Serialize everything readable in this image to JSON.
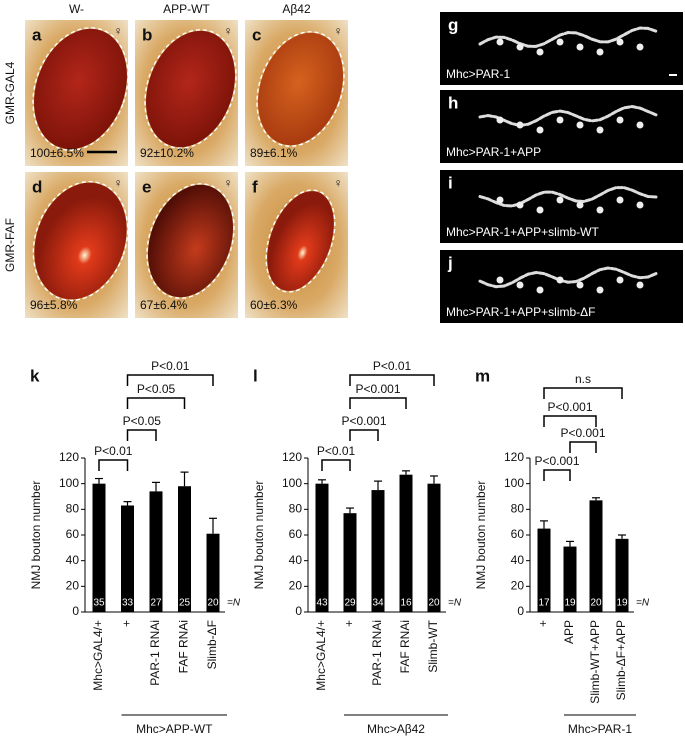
{
  "eye_panels": {
    "column_headers": [
      "W-",
      "APP-WT",
      "Aβ42"
    ],
    "row_labels": [
      "GMR-GAL4",
      "GMR-FAF"
    ],
    "panels": [
      {
        "letter": "a",
        "value_text": "100±6.5%",
        "symbol": "♀"
      },
      {
        "letter": "b",
        "value_text": "92±10.2%",
        "symbol": "♀"
      },
      {
        "letter": "c",
        "value_text": "89±6.1%",
        "symbol": "♀"
      },
      {
        "letter": "d",
        "value_text": "96±5.8%",
        "symbol": "♀"
      },
      {
        "letter": "e",
        "value_text": "67±6.4%",
        "symbol": "♀"
      },
      {
        "letter": "f",
        "value_text": "60±6.3%",
        "symbol": "♀"
      }
    ]
  },
  "nmj_panels": [
    {
      "letter": "g",
      "label": "Mhc>PAR-1"
    },
    {
      "letter": "h",
      "label": "Mhc>PAR-1+APP"
    },
    {
      "letter": "i",
      "label": "Mhc>PAR-1+APP+slimb-WT"
    },
    {
      "letter": "j",
      "label": "Mhc>PAR-1+APP+slimb-ΔF"
    }
  ],
  "chart_data": [
    {
      "type": "bar",
      "letter": "k",
      "ylabel": "NMJ bouton number",
      "color": "#000000",
      "categories": [
        "Mhc>GAL4/+",
        "+",
        "PAR-1 RNAi",
        "FAF RNAi",
        "Slimb-ΔF"
      ],
      "values": [
        100,
        83,
        94,
        98,
        61
      ],
      "errors": [
        4,
        3,
        7,
        11,
        12
      ],
      "n_labels": [
        "35",
        "33",
        "27",
        "25",
        "20"
      ],
      "n_suffix": "=N",
      "group_label": "Mhc>APP-WT",
      "ylim": [
        0,
        120
      ],
      "yticks": [
        0,
        20,
        40,
        60,
        80,
        100,
        120
      ],
      "comparisons": [
        {
          "label": "P<0.01",
          "pair": [
            "Mhc>GAL4/+",
            "+"
          ]
        },
        {
          "label": "P<0.05",
          "pair": [
            "+",
            "PAR-1 RNAi"
          ]
        },
        {
          "label": "P<0.05",
          "pair": [
            "+",
            "FAF RNAi"
          ]
        },
        {
          "label": "P<0.01",
          "pair": [
            "+",
            "Slimb-ΔF"
          ]
        }
      ]
    },
    {
      "type": "bar",
      "letter": "l",
      "ylabel": "NMJ bouton number",
      "color": "#000000",
      "categories": [
        "Mhc>GAL4/+",
        "+",
        "PAR-1 RNAi",
        "FAF RNAi",
        "Slimb-WT"
      ],
      "values": [
        100,
        77,
        95,
        107,
        100
      ],
      "errors": [
        3,
        4,
        7,
        3,
        6
      ],
      "n_labels": [
        "43",
        "29",
        "34",
        "16",
        "20"
      ],
      "n_suffix": "=N",
      "group_label": "Mhc>Aβ42",
      "ylim": [
        0,
        120
      ],
      "yticks": [
        0,
        20,
        40,
        60,
        80,
        100,
        120
      ],
      "comparisons": [
        {
          "label": "P<0.01",
          "pair": [
            "Mhc>GAL4/+",
            "+"
          ]
        },
        {
          "label": "P<0.001",
          "pair": [
            "+",
            "PAR-1 RNAi"
          ]
        },
        {
          "label": "P<0.001",
          "pair": [
            "+",
            "FAF RNAi"
          ]
        },
        {
          "label": "P<0.01",
          "pair": [
            "+",
            "Slimb-WT"
          ]
        }
      ]
    },
    {
      "type": "bar",
      "letter": "m",
      "ylabel": "NMJ bouton number",
      "color": "#000000",
      "categories": [
        "+",
        "APP",
        "Slimb-WT+APP",
        "Slimb-ΔF+APP"
      ],
      "values": [
        65,
        51,
        87,
        57
      ],
      "errors": [
        6,
        4,
        2,
        3
      ],
      "n_labels": [
        "17",
        "19",
        "20",
        "19"
      ],
      "n_suffix": "=N",
      "group_label": "Mhc>PAR-1",
      "ylim": [
        0,
        120
      ],
      "yticks": [
        0,
        20,
        40,
        60,
        80,
        100,
        120
      ],
      "comparisons": [
        {
          "label": "P<0.001",
          "pair": [
            "+",
            "APP"
          ]
        },
        {
          "label": "P<0.001",
          "pair": [
            "APP",
            "Slimb-WT+APP"
          ]
        },
        {
          "label": "P<0.001",
          "pair": [
            "+",
            "Slimb-WT+APP"
          ]
        },
        {
          "label": "n.s",
          "pair": [
            "+",
            "Slimb-ΔF+APP"
          ]
        }
      ]
    }
  ]
}
